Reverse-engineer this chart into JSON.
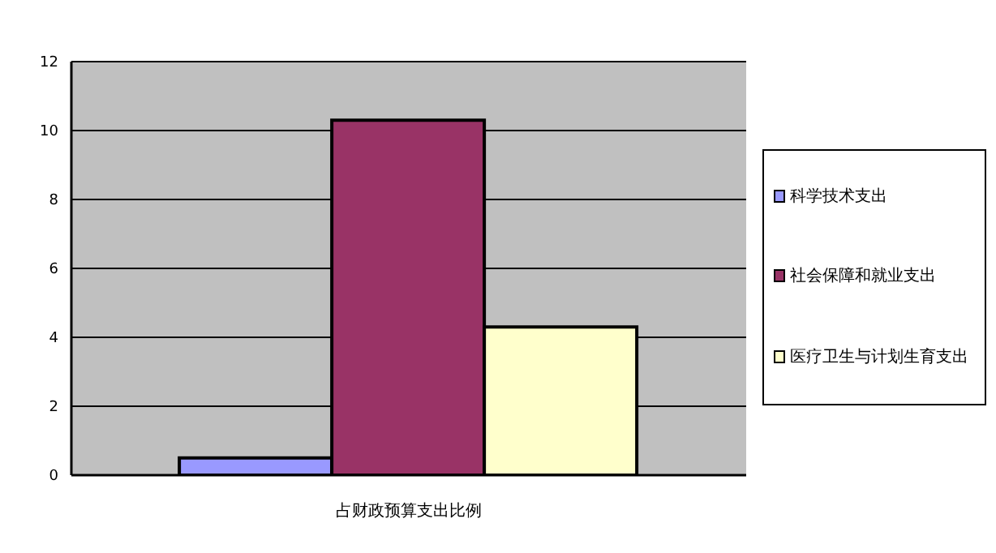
{
  "chart_data": {
    "type": "bar",
    "categories": [
      "占财政预算支出比例"
    ],
    "series": [
      {
        "name": "科学技术支出",
        "color": "#9999ff",
        "values": [
          0.5
        ]
      },
      {
        "name": "社会保障和就业支出",
        "color": "#993366",
        "values": [
          10.3
        ]
      },
      {
        "name": "医疗卫生与计划生育支出",
        "color": "#ffffcc",
        "values": [
          4.3
        ]
      }
    ],
    "ylim": [
      0,
      12
    ],
    "yticks": [
      0,
      2,
      4,
      6,
      8,
      10,
      12
    ],
    "grid": "y",
    "legend": "right"
  }
}
